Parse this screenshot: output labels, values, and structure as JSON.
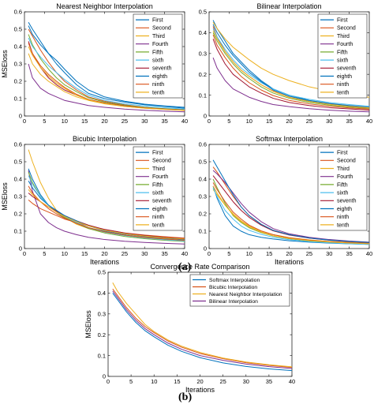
{
  "figure": {
    "label_a": "(a)",
    "label_b": "(b)"
  },
  "chart_data": [
    {
      "type": "line",
      "title": "Nearest Neighbor Interpolation",
      "xlabel": "",
      "ylabel": "MSEloss",
      "xlim": [
        0,
        40
      ],
      "ylim": [
        0,
        0.6
      ],
      "xticks": [
        0,
        5,
        10,
        15,
        20,
        25,
        30,
        35,
        40
      ],
      "yticks": [
        0,
        0.1,
        0.2,
        0.3,
        0.4,
        0.5,
        0.6
      ],
      "legend_position": "top-right",
      "x": [
        1,
        2,
        4,
        6,
        8,
        10,
        13,
        16,
        20,
        25,
        30,
        35,
        40
      ],
      "series": [
        {
          "name": "First",
          "color": "#0072BD",
          "values": [
            0.54,
            0.5,
            0.43,
            0.36,
            0.3,
            0.25,
            0.18,
            0.13,
            0.1,
            0.08,
            0.065,
            0.055,
            0.045
          ]
        },
        {
          "name": "Second",
          "color": "#D95319",
          "values": [
            0.5,
            0.46,
            0.38,
            0.31,
            0.25,
            0.2,
            0.15,
            0.11,
            0.085,
            0.065,
            0.05,
            0.04,
            0.035
          ]
        },
        {
          "name": "Third",
          "color": "#EDB120",
          "values": [
            0.36,
            0.3,
            0.24,
            0.2,
            0.17,
            0.14,
            0.11,
            0.09,
            0.07,
            0.055,
            0.045,
            0.038,
            0.032
          ]
        },
        {
          "name": "Fourth",
          "color": "#7E2F8E",
          "values": [
            0.3,
            0.22,
            0.16,
            0.13,
            0.11,
            0.09,
            0.075,
            0.06,
            0.05,
            0.04,
            0.033,
            0.028,
            0.024
          ]
        },
        {
          "name": "Fifth",
          "color": "#77AC30",
          "values": [
            0.47,
            0.41,
            0.33,
            0.27,
            0.22,
            0.18,
            0.14,
            0.105,
            0.08,
            0.062,
            0.05,
            0.042,
            0.036
          ]
        },
        {
          "name": "sixth",
          "color": "#4DBEEE",
          "values": [
            0.45,
            0.4,
            0.34,
            0.29,
            0.25,
            0.21,
            0.16,
            0.12,
            0.09,
            0.07,
            0.058,
            0.048,
            0.04
          ]
        },
        {
          "name": "seventh",
          "color": "#A2142F",
          "values": [
            0.43,
            0.36,
            0.28,
            0.22,
            0.18,
            0.15,
            0.12,
            0.095,
            0.075,
            0.058,
            0.047,
            0.04,
            0.034
          ]
        },
        {
          "name": "eighth",
          "color": "#0072BD",
          "values": [
            0.52,
            0.47,
            0.41,
            0.36,
            0.32,
            0.27,
            0.2,
            0.15,
            0.11,
            0.085,
            0.068,
            0.058,
            0.05
          ]
        },
        {
          "name": "ninth",
          "color": "#D95319",
          "values": [
            0.42,
            0.36,
            0.29,
            0.24,
            0.2,
            0.165,
            0.125,
            0.095,
            0.074,
            0.057,
            0.046,
            0.039,
            0.033
          ]
        },
        {
          "name": "tenth",
          "color": "#EDB120",
          "values": [
            0.4,
            0.35,
            0.28,
            0.23,
            0.19,
            0.16,
            0.12,
            0.092,
            0.072,
            0.055,
            0.045,
            0.038,
            0.033
          ]
        }
      ]
    },
    {
      "type": "line",
      "title": "Bilinear Interpolation",
      "xlabel": "",
      "ylabel": "",
      "xlim": [
        0,
        40
      ],
      "ylim": [
        0,
        0.5
      ],
      "xticks": [
        0,
        5,
        10,
        15,
        20,
        25,
        30,
        35,
        40
      ],
      "yticks": [
        0,
        0.1,
        0.2,
        0.3,
        0.4,
        0.5
      ],
      "legend_position": "top-right",
      "x": [
        1,
        2,
        4,
        6,
        8,
        10,
        13,
        16,
        20,
        25,
        30,
        35,
        40
      ],
      "series": [
        {
          "name": "First",
          "color": "#0072BD",
          "values": [
            0.46,
            0.42,
            0.36,
            0.3,
            0.26,
            0.22,
            0.17,
            0.13,
            0.1,
            0.075,
            0.06,
            0.05,
            0.042
          ]
        },
        {
          "name": "Second",
          "color": "#D95319",
          "values": [
            0.43,
            0.38,
            0.31,
            0.26,
            0.22,
            0.19,
            0.15,
            0.12,
            0.09,
            0.07,
            0.058,
            0.048,
            0.04
          ]
        },
        {
          "name": "Third",
          "color": "#EDB120",
          "values": [
            0.45,
            0.42,
            0.37,
            0.33,
            0.3,
            0.27,
            0.23,
            0.2,
            0.17,
            0.14,
            0.12,
            0.1,
            0.09
          ]
        },
        {
          "name": "Fourth",
          "color": "#7E2F8E",
          "values": [
            0.28,
            0.23,
            0.17,
            0.13,
            0.11,
            0.09,
            0.07,
            0.055,
            0.045,
            0.035,
            0.028,
            0.023,
            0.02
          ]
        },
        {
          "name": "Fifth",
          "color": "#77AC30",
          "values": [
            0.4,
            0.36,
            0.3,
            0.25,
            0.21,
            0.18,
            0.14,
            0.11,
            0.085,
            0.065,
            0.052,
            0.043,
            0.036
          ]
        },
        {
          "name": "sixth",
          "color": "#4DBEEE",
          "values": [
            0.42,
            0.38,
            0.32,
            0.27,
            0.23,
            0.2,
            0.16,
            0.13,
            0.1,
            0.08,
            0.065,
            0.055,
            0.047
          ]
        },
        {
          "name": "seventh",
          "color": "#A2142F",
          "values": [
            0.37,
            0.32,
            0.25,
            0.2,
            0.17,
            0.14,
            0.11,
            0.085,
            0.065,
            0.05,
            0.04,
            0.034,
            0.028
          ]
        },
        {
          "name": "eighth",
          "color": "#0072BD",
          "values": [
            0.44,
            0.4,
            0.34,
            0.29,
            0.25,
            0.21,
            0.165,
            0.125,
            0.095,
            0.072,
            0.058,
            0.048,
            0.04
          ]
        },
        {
          "name": "ninth",
          "color": "#D95319",
          "values": [
            0.39,
            0.34,
            0.28,
            0.23,
            0.19,
            0.16,
            0.125,
            0.098,
            0.075,
            0.058,
            0.047,
            0.039,
            0.033
          ]
        },
        {
          "name": "tenth",
          "color": "#EDB120",
          "values": [
            0.41,
            0.37,
            0.31,
            0.26,
            0.22,
            0.19,
            0.15,
            0.118,
            0.09,
            0.07,
            0.056,
            0.046,
            0.039
          ]
        }
      ]
    },
    {
      "type": "line",
      "title": "Bicubic Interpolation",
      "xlabel": "Iterations",
      "ylabel": "MSEloss",
      "xlim": [
        0,
        40
      ],
      "ylim": [
        0,
        0.6
      ],
      "xticks": [
        0,
        5,
        10,
        15,
        20,
        25,
        30,
        35,
        40
      ],
      "yticks": [
        0,
        0.1,
        0.2,
        0.3,
        0.4,
        0.5,
        0.6
      ],
      "legend_position": "top-right",
      "x": [
        1,
        2,
        4,
        6,
        8,
        10,
        13,
        16,
        20,
        25,
        30,
        35,
        40
      ],
      "series": [
        {
          "name": "First",
          "color": "#0072BD",
          "values": [
            0.46,
            0.4,
            0.31,
            0.25,
            0.21,
            0.18,
            0.15,
            0.12,
            0.1,
            0.08,
            0.065,
            0.055,
            0.048
          ]
        },
        {
          "name": "Second",
          "color": "#D95319",
          "values": [
            0.28,
            0.26,
            0.23,
            0.21,
            0.19,
            0.17,
            0.15,
            0.13,
            0.11,
            0.09,
            0.078,
            0.068,
            0.06
          ]
        },
        {
          "name": "Third",
          "color": "#EDB120",
          "values": [
            0.57,
            0.5,
            0.38,
            0.29,
            0.22,
            0.18,
            0.14,
            0.115,
            0.095,
            0.078,
            0.066,
            0.058,
            0.052
          ]
        },
        {
          "name": "Fourth",
          "color": "#7E2F8E",
          "values": [
            0.45,
            0.33,
            0.2,
            0.15,
            0.12,
            0.1,
            0.08,
            0.065,
            0.052,
            0.042,
            0.035,
            0.03,
            0.026
          ]
        },
        {
          "name": "Fifth",
          "color": "#77AC30",
          "values": [
            0.44,
            0.38,
            0.3,
            0.25,
            0.21,
            0.18,
            0.145,
            0.115,
            0.09,
            0.07,
            0.057,
            0.048,
            0.041
          ]
        },
        {
          "name": "sixth",
          "color": "#4DBEEE",
          "values": [
            0.42,
            0.37,
            0.3,
            0.25,
            0.215,
            0.185,
            0.15,
            0.12,
            0.095,
            0.075,
            0.061,
            0.051,
            0.044
          ]
        },
        {
          "name": "seventh",
          "color": "#A2142F",
          "values": [
            0.32,
            0.3,
            0.27,
            0.24,
            0.215,
            0.19,
            0.16,
            0.135,
            0.11,
            0.09,
            0.075,
            0.065,
            0.057
          ]
        },
        {
          "name": "eighth",
          "color": "#0072BD",
          "values": [
            0.39,
            0.35,
            0.29,
            0.25,
            0.22,
            0.19,
            0.16,
            0.13,
            0.105,
            0.085,
            0.07,
            0.06,
            0.052
          ]
        },
        {
          "name": "ninth",
          "color": "#D95319",
          "values": [
            0.36,
            0.32,
            0.27,
            0.23,
            0.2,
            0.175,
            0.145,
            0.12,
            0.097,
            0.078,
            0.064,
            0.055,
            0.048
          ]
        },
        {
          "name": "tenth",
          "color": "#EDB120",
          "values": [
            0.34,
            0.31,
            0.27,
            0.24,
            0.21,
            0.185,
            0.155,
            0.13,
            0.105,
            0.086,
            0.072,
            0.062,
            0.055
          ]
        }
      ]
    },
    {
      "type": "line",
      "title": "Softmax Interpolation",
      "xlabel": "Iterations",
      "ylabel": "",
      "xlim": [
        0,
        40
      ],
      "ylim": [
        0,
        0.6
      ],
      "xticks": [
        0,
        5,
        10,
        15,
        20,
        25,
        30,
        35,
        40
      ],
      "yticks": [
        0,
        0.1,
        0.2,
        0.3,
        0.4,
        0.5,
        0.6
      ],
      "legend_position": "top-right",
      "x": [
        1,
        2,
        4,
        6,
        8,
        10,
        13,
        16,
        20,
        25,
        30,
        35,
        40
      ],
      "series": [
        {
          "name": "First",
          "color": "#0072BD",
          "values": [
            0.36,
            0.29,
            0.19,
            0.13,
            0.1,
            0.08,
            0.065,
            0.055,
            0.045,
            0.037,
            0.031,
            0.027,
            0.024
          ]
        },
        {
          "name": "Second",
          "color": "#D95319",
          "values": [
            0.47,
            0.44,
            0.37,
            0.3,
            0.24,
            0.19,
            0.14,
            0.105,
            0.08,
            0.062,
            0.05,
            0.042,
            0.036
          ]
        },
        {
          "name": "Third",
          "color": "#EDB120",
          "values": [
            0.34,
            0.31,
            0.25,
            0.2,
            0.16,
            0.13,
            0.1,
            0.08,
            0.063,
            0.05,
            0.041,
            0.035,
            0.03
          ]
        },
        {
          "name": "Fourth",
          "color": "#7E2F8E",
          "values": [
            0.45,
            0.43,
            0.38,
            0.32,
            0.26,
            0.21,
            0.155,
            0.115,
            0.085,
            0.065,
            0.052,
            0.043,
            0.037
          ]
        },
        {
          "name": "Fifth",
          "color": "#77AC30",
          "values": [
            0.4,
            0.35,
            0.26,
            0.19,
            0.15,
            0.12,
            0.092,
            0.072,
            0.056,
            0.044,
            0.036,
            0.031,
            0.027
          ]
        },
        {
          "name": "sixth",
          "color": "#4DBEEE",
          "values": [
            0.35,
            0.3,
            0.22,
            0.17,
            0.13,
            0.105,
            0.082,
            0.065,
            0.051,
            0.04,
            0.033,
            0.028,
            0.024
          ]
        },
        {
          "name": "seventh",
          "color": "#A2142F",
          "values": [
            0.42,
            0.39,
            0.33,
            0.27,
            0.22,
            0.18,
            0.135,
            0.102,
            0.078,
            0.06,
            0.048,
            0.04,
            0.034
          ]
        },
        {
          "name": "eighth",
          "color": "#0072BD",
          "values": [
            0.51,
            0.47,
            0.39,
            0.31,
            0.24,
            0.19,
            0.14,
            0.105,
            0.08,
            0.061,
            0.049,
            0.041,
            0.035
          ]
        },
        {
          "name": "ninth",
          "color": "#D95319",
          "values": [
            0.38,
            0.34,
            0.27,
            0.21,
            0.17,
            0.135,
            0.102,
            0.08,
            0.062,
            0.049,
            0.04,
            0.034,
            0.029
          ]
        },
        {
          "name": "tenth",
          "color": "#EDB120",
          "values": [
            0.36,
            0.32,
            0.25,
            0.195,
            0.155,
            0.125,
            0.095,
            0.074,
            0.058,
            0.046,
            0.038,
            0.032,
            0.028
          ]
        }
      ]
    },
    {
      "type": "line",
      "title": "Convergence Rate Comparison",
      "xlabel": "Iterations",
      "ylabel": "MSEloss",
      "xlim": [
        0,
        40
      ],
      "ylim": [
        0,
        0.5
      ],
      "xticks": [
        0,
        5,
        10,
        15,
        20,
        25,
        30,
        35,
        40
      ],
      "yticks": [
        0,
        0.1,
        0.2,
        0.3,
        0.4,
        0.5
      ],
      "legend_position": "top-right",
      "x": [
        1,
        2,
        4,
        6,
        8,
        10,
        13,
        16,
        20,
        25,
        30,
        35,
        40
      ],
      "series": [
        {
          "name": "Softmax Interpolation",
          "color": "#0072BD",
          "values": [
            0.4,
            0.37,
            0.31,
            0.26,
            0.22,
            0.19,
            0.15,
            0.12,
            0.09,
            0.065,
            0.048,
            0.036,
            0.028
          ]
        },
        {
          "name": "Bicubic Interpolation",
          "color": "#D95319",
          "values": [
            0.42,
            0.39,
            0.33,
            0.28,
            0.24,
            0.21,
            0.17,
            0.14,
            0.11,
            0.085,
            0.066,
            0.053,
            0.043
          ]
        },
        {
          "name": "Nearest Neighbor Interpolation",
          "color": "#EDB120",
          "values": [
            0.45,
            0.41,
            0.35,
            0.3,
            0.25,
            0.215,
            0.175,
            0.145,
            0.115,
            0.088,
            0.069,
            0.056,
            0.046
          ]
        },
        {
          "name": "Bilinear Interpolation",
          "color": "#7E2F8E",
          "values": [
            0.41,
            0.38,
            0.32,
            0.27,
            0.23,
            0.2,
            0.16,
            0.13,
            0.1,
            0.077,
            0.059,
            0.047,
            0.038
          ]
        }
      ]
    }
  ]
}
